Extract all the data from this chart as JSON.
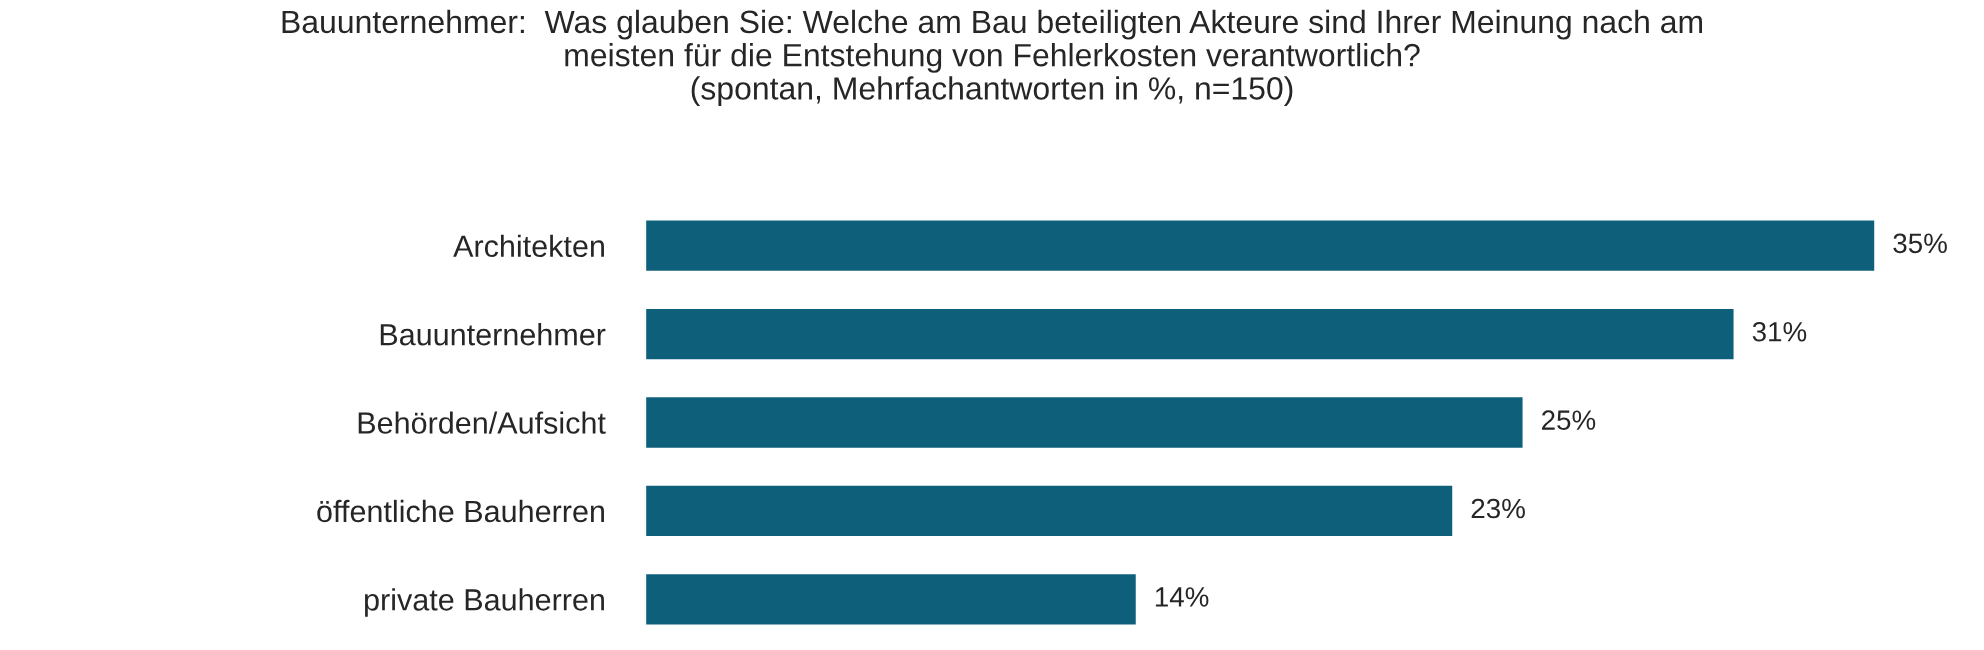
{
  "chart_data": {
    "type": "bar",
    "orientation": "horizontal",
    "title": "Bauunternehmer:  Was glauben Sie: Welche am Bau beteiligten Akteure sind Ihrer Meinung nach am\nmeisten für die Entstehung von Fehlerkosten verantwortlich?\n(spontan, Mehrfachantworten in %, n=150)",
    "categories": [
      "Architekten",
      "Bauunternehmer",
      "Behörden/Aufsicht",
      "öffentliche Bauherren",
      "private Bauherren"
    ],
    "values": [
      35,
      31,
      25,
      23,
      14
    ],
    "value_labels": [
      "35%",
      "31%",
      "25%",
      "23%",
      "14%"
    ],
    "color": "#0e5f7a",
    "tick_labels": "y",
    "grid": false,
    "legend": false
  }
}
